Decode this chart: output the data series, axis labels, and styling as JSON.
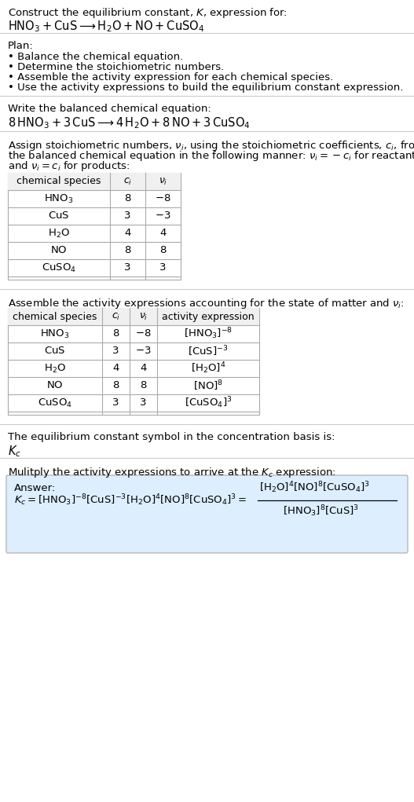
{
  "title_line1": "Construct the equilibrium constant, $K$, expression for:",
  "title_line2": "$\\mathrm{HNO_3 + CuS \\longrightarrow H_2O + NO + CuSO_4}$",
  "plan_header": "Plan:",
  "plan_items": [
    "\\textbullet  Balance the chemical equation.",
    "\\textbullet  Determine the stoichiometric numbers.",
    "\\textbullet  Assemble the activity expression for each chemical species.",
    "\\textbullet  Use the activity expressions to build the equilibrium constant expression."
  ],
  "balanced_header": "Write the balanced chemical equation:",
  "balanced_eq": "$8\\,\\mathrm{HNO_3 + 3\\,CuS \\longrightarrow 4\\,H_2O + 8\\,NO + 3\\,CuSO_4}$",
  "stoich_header": "Assign stoichiometric numbers, $\\nu_i$, using the stoichiometric coefficients, $c_i$, from\nthe balanced chemical equation in the following manner: $\\nu_i = -c_i$ for reactants\nand $\\nu_i = c_i$ for products:",
  "table1_headers": [
    "chemical species",
    "$c_i$",
    "$\\nu_i$"
  ],
  "table1_rows": [
    [
      "$\\mathrm{HNO_3}$",
      "8",
      "$-8$"
    ],
    [
      "$\\mathrm{CuS}$",
      "3",
      "$-3$"
    ],
    [
      "$\\mathrm{H_2O}$",
      "4",
      "4"
    ],
    [
      "$\\mathrm{NO}$",
      "8",
      "8"
    ],
    [
      "$\\mathrm{CuSO_4}$",
      "3",
      "3"
    ]
  ],
  "activity_header": "Assemble the activity expressions accounting for the state of matter and $\\nu_i$:",
  "table2_headers": [
    "chemical species",
    "$c_i$",
    "$\\nu_i$",
    "activity expression"
  ],
  "table2_rows": [
    [
      "$\\mathrm{HNO_3}$",
      "8",
      "$-8$",
      "$[\\mathrm{HNO_3}]^{-8}$"
    ],
    [
      "$\\mathrm{CuS}$",
      "3",
      "$-3$",
      "$[\\mathrm{CuS}]^{-3}$"
    ],
    [
      "$\\mathrm{H_2O}$",
      "4",
      "4",
      "$[\\mathrm{H_2O}]^{4}$"
    ],
    [
      "$\\mathrm{NO}$",
      "8",
      "8",
      "$[\\mathrm{NO}]^{8}$"
    ],
    [
      "$\\mathrm{CuSO_4}$",
      "3",
      "3",
      "$[\\mathrm{CuSO_4}]^{3}$"
    ]
  ],
  "kc_header": "The equilibrium constant symbol in the concentration basis is:",
  "kc_symbol": "$K_c$",
  "multiply_header": "Mulitply the activity expressions to arrive at the $K_c$ expression:",
  "answer_label": "Answer:",
  "answer_eq_line1": "$K_c = [\\mathrm{HNO_3}]^{-8}\\,[\\mathrm{CuS}]^{-3}\\,[\\mathrm{H_2O}]^{4}\\,[\\mathrm{NO}]^{8}\\,[\\mathrm{CuSO_4}]^{3} = \\dfrac{[\\mathrm{H_2O}]^{4}\\,[\\mathrm{NO}]^{8}\\,[\\mathrm{CuSO_4}]^{3}}{[\\mathrm{HNO_3}]^{8}\\,[\\mathrm{CuS}]^{3}}$",
  "bg_color": "#ffffff",
  "table_border_color": "#aaaaaa",
  "answer_box_color": "#ddeeff",
  "text_color": "#000000",
  "font_size": 9.5
}
